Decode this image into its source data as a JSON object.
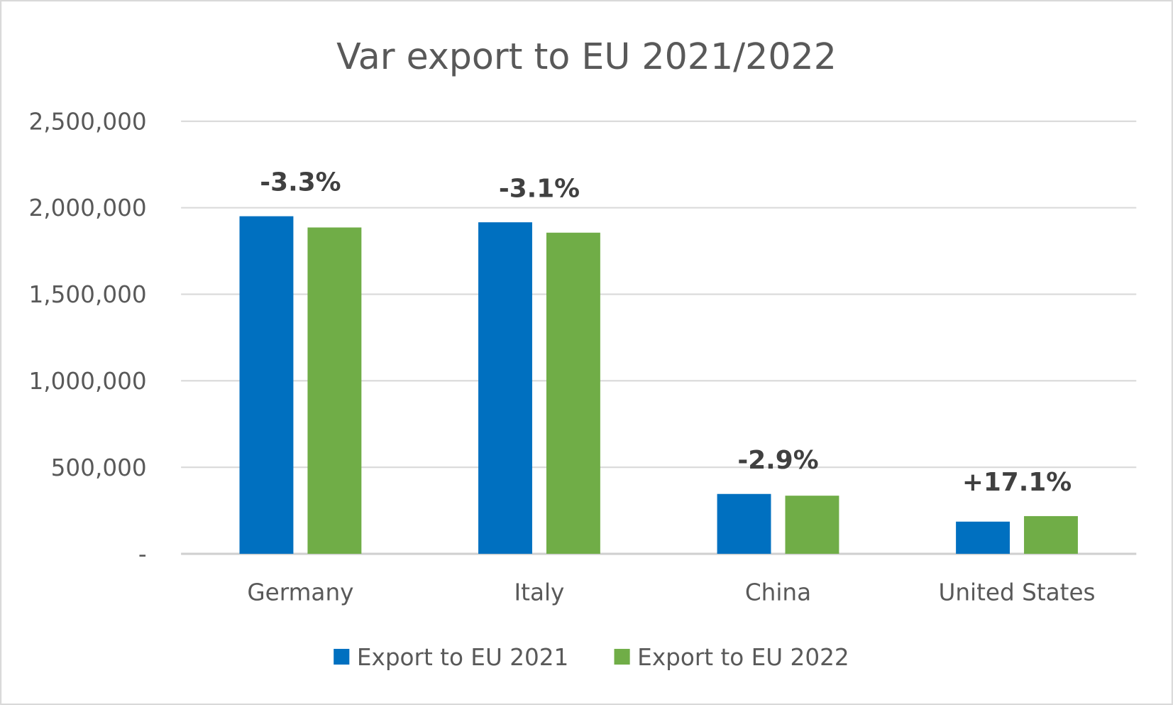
{
  "chart_data": {
    "type": "bar",
    "title": "Var export to EU 2021/2022",
    "xlabel": "",
    "ylabel": "",
    "ylim": [
      0,
      2500000
    ],
    "yticks": [
      0,
      500000,
      1000000,
      1500000,
      2000000,
      2500000
    ],
    "ytick_labels": [
      "-",
      "500,000",
      "1,000,000",
      "1,500,000",
      "2,000,000",
      "2,500,000"
    ],
    "grid": true,
    "legend_position": "bottom",
    "categories": [
      "Germany",
      "Italy",
      "China",
      "United States"
    ],
    "series": [
      {
        "name": "Export to EU 2021",
        "color": "#0070C0",
        "values": [
          1951000,
          1916000,
          346000,
          186000
        ]
      },
      {
        "name": "Export to EU 2022",
        "color": "#70AD47",
        "values": [
          1886000,
          1856000,
          336000,
          218000
        ]
      }
    ],
    "annotations": [
      "-3.3%",
      "-3.1%",
      "-2.9%",
      "+17.1%"
    ]
  }
}
